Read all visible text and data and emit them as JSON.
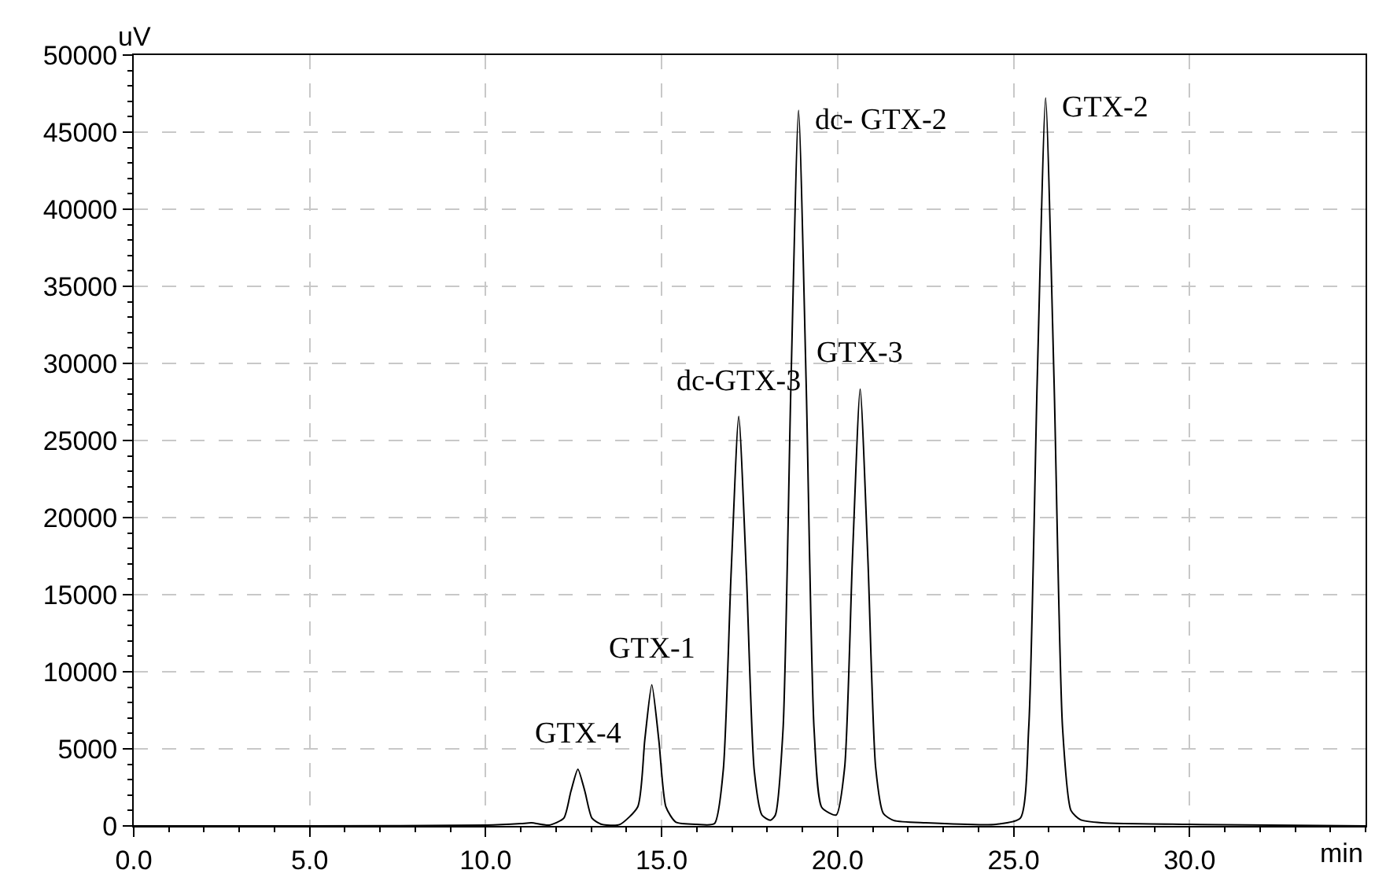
{
  "chart_data": {
    "type": "line",
    "xlabel": "min",
    "ylabel": "uV",
    "series": [
      {
        "color": "#000000",
        "x": [
          0,
          5,
          10,
          11.0,
          11.3,
          11.8,
          12.22,
          12.42,
          12.62,
          12.82,
          13.02,
          13.3,
          13.8,
          14.32,
          14.52,
          14.72,
          14.92,
          15.12,
          15.4,
          16.0,
          16.5,
          16.75,
          16.97,
          17.19,
          17.41,
          17.63,
          17.85,
          18.09,
          18.23,
          18.45,
          18.67,
          18.89,
          19.11,
          19.33,
          19.55,
          19.96,
          20.2,
          20.42,
          20.64,
          20.86,
          21.08,
          21.3,
          21.6,
          22.5,
          24.5,
          25.19,
          25.43,
          25.67,
          25.91,
          26.15,
          26.39,
          26.63,
          26.9,
          27.5,
          30,
          35
        ],
        "values": [
          0,
          0,
          50,
          150,
          200,
          50,
          500,
          2230,
          3680,
          2230,
          500,
          100,
          80,
          1240,
          5560,
          9160,
          5560,
          1240,
          250,
          100,
          150,
          3600,
          16200,
          26570,
          16200,
          3600,
          700,
          370,
          700,
          6300,
          28300,
          46410,
          28300,
          6300,
          1200,
          710,
          3800,
          17300,
          28330,
          17300,
          3800,
          800,
          350,
          200,
          100,
          500,
          6400,
          28800,
          47220,
          28800,
          6400,
          1000,
          400,
          200,
          100,
          0
        ]
      }
    ],
    "xlim": [
      0,
      35
    ],
    "xticks": [
      {
        "value": 0,
        "label": "0.0"
      },
      {
        "value": 5,
        "label": "5.0"
      },
      {
        "value": 10,
        "label": "10.0"
      },
      {
        "value": 15,
        "label": "15.0"
      },
      {
        "value": 20,
        "label": "20.0"
      },
      {
        "value": 25,
        "label": "25.0"
      },
      {
        "value": 30,
        "label": "30.0"
      }
    ],
    "ylim": [
      0,
      50000
    ],
    "yticks": [
      0,
      5000,
      10000,
      15000,
      20000,
      25000,
      30000,
      35000,
      40000,
      45000,
      50000
    ],
    "grid": true,
    "marker": "none",
    "line_style": "solid",
    "annotations": [
      {
        "text": "GTX-4",
        "x": 12.62,
        "y": 3680
      },
      {
        "text": "GTX-1",
        "x": 14.72,
        "y": 9160
      },
      {
        "text": "dc-GTX-3",
        "x": 17.19,
        "y": 26570
      },
      {
        "text": "dc- GTX-2",
        "x": 18.89,
        "y": 46410
      },
      {
        "text": "GTX-3",
        "x": 20.64,
        "y": 28330
      },
      {
        "text": "GTX-2",
        "x": 25.91,
        "y": 47220
      }
    ]
  }
}
